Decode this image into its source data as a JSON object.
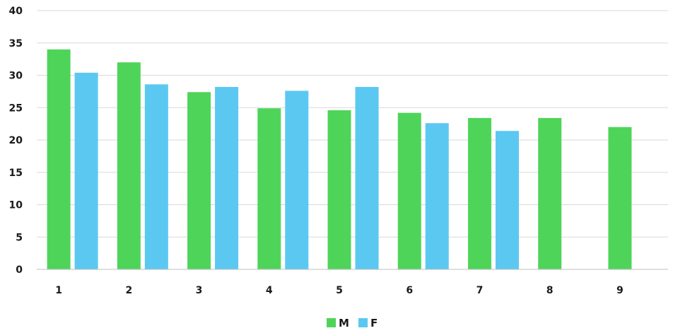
{
  "chart_data": {
    "type": "bar",
    "categories": [
      "1",
      "2",
      "3",
      "4",
      "5",
      "6",
      "7",
      "8",
      "9"
    ],
    "series": [
      {
        "name": "M",
        "color": "#4fd45a",
        "values": [
          34,
          32,
          27.4,
          24.9,
          24.6,
          24.2,
          23.4,
          23.4,
          22.0
        ]
      },
      {
        "name": "F",
        "color": "#5bc8f2",
        "values": [
          30.4,
          28.6,
          28.2,
          27.6,
          28.2,
          22.6,
          21.4,
          null,
          null
        ]
      }
    ],
    "yticks": [
      "0",
      "5",
      "10",
      "15",
      "20",
      "25",
      "30",
      "35",
      "40"
    ],
    "ylim": [
      0,
      40
    ],
    "title": "",
    "xlabel": "",
    "ylabel": "",
    "grid": true,
    "legend_position": "bottom-center"
  }
}
